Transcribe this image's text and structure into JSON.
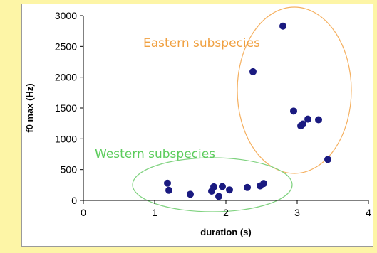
{
  "chart_data": {
    "type": "scatter",
    "title": "",
    "xlabel": "duration (s)",
    "ylabel": "f0 max (Hz)",
    "xlim": [
      0,
      4
    ],
    "ylim": [
      0,
      3000
    ],
    "x_ticks": [
      "0",
      "1",
      "2",
      "3",
      "4"
    ],
    "y_ticks": [
      "0",
      "500",
      "1000",
      "1500",
      "2000",
      "2500",
      "3000"
    ],
    "grid": false,
    "legend": "none",
    "marker_color": "#1a1a80",
    "series": [
      {
        "points": [
          {
            "x": 1.18,
            "y": 280
          },
          {
            "x": 1.2,
            "y": 165
          },
          {
            "x": 1.5,
            "y": 100
          },
          {
            "x": 1.8,
            "y": 150
          },
          {
            "x": 1.83,
            "y": 220
          },
          {
            "x": 1.9,
            "y": 65
          },
          {
            "x": 1.95,
            "y": 225
          },
          {
            "x": 2.05,
            "y": 170
          },
          {
            "x": 2.3,
            "y": 210
          },
          {
            "x": 2.48,
            "y": 235
          },
          {
            "x": 2.53,
            "y": 275
          },
          {
            "x": 2.38,
            "y": 2090
          },
          {
            "x": 2.8,
            "y": 2830
          },
          {
            "x": 2.95,
            "y": 1450
          },
          {
            "x": 3.05,
            "y": 1210
          },
          {
            "x": 3.08,
            "y": 1240
          },
          {
            "x": 3.15,
            "y": 1320
          },
          {
            "x": 3.3,
            "y": 1310
          },
          {
            "x": 3.43,
            "y": 665
          }
        ]
      }
    ],
    "annotations": [
      {
        "text": "Eastern subspecies",
        "color": "#f0a040"
      },
      {
        "text": "Western subspecies",
        "color": "#5ccc5c"
      }
    ]
  }
}
